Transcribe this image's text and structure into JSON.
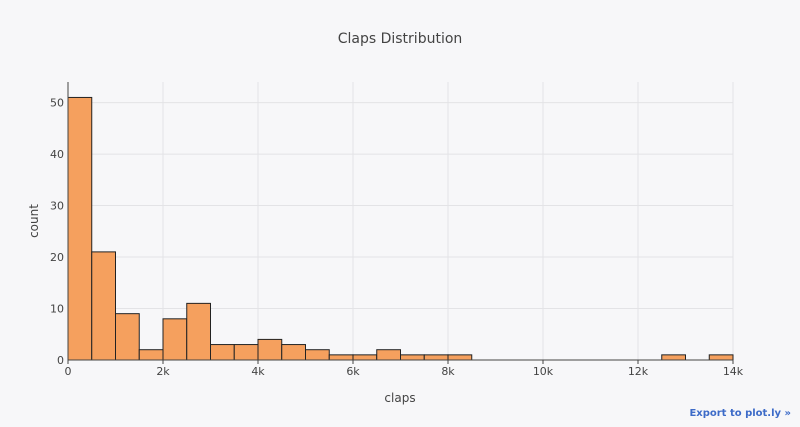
{
  "chart_data": {
    "type": "bar",
    "title": "Claps Distribution",
    "xlabel": "claps",
    "ylabel": "count",
    "bin_width": 500,
    "x_range": [
      0,
      14000
    ],
    "y_range": [
      0,
      54
    ],
    "x_ticks": [
      0,
      2000,
      4000,
      6000,
      8000,
      10000,
      12000,
      14000
    ],
    "x_tick_labels": [
      "0",
      "2k",
      "4k",
      "6k",
      "8k",
      "10k",
      "12k",
      "14k"
    ],
    "y_ticks": [
      0,
      10,
      20,
      30,
      40,
      50
    ],
    "y_tick_labels": [
      "0",
      "10",
      "20",
      "30",
      "40",
      "50"
    ],
    "grid": true,
    "bin_starts": [
      0,
      500,
      1000,
      1500,
      2000,
      2500,
      3000,
      3500,
      4000,
      4500,
      5000,
      5500,
      6000,
      6500,
      7000,
      7500,
      8000,
      12500,
      13500
    ],
    "values": [
      51,
      21,
      9,
      2,
      8,
      11,
      3,
      3,
      4,
      3,
      2,
      1,
      1,
      2,
      1,
      1,
      1,
      1,
      1
    ],
    "colors": {
      "bar": "#f5a05e",
      "bar_outline": "#222222",
      "grid": "#e3e3e6",
      "axis": "#444444",
      "text": "#444444",
      "background": "#f7f7f9"
    }
  },
  "export_link_label": "Export to plot.ly »"
}
